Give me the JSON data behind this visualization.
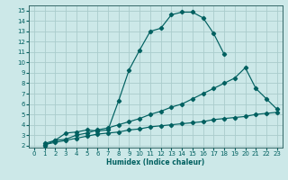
{
  "xlabel": "Humidex (Indice chaleur)",
  "bg_color": "#cce8e8",
  "grid_color": "#aacccc",
  "line_color": "#006060",
  "spine_color": "#336666",
  "xlim": [
    -0.5,
    23.5
  ],
  "ylim": [
    1.8,
    15.5
  ],
  "xticks": [
    0,
    1,
    2,
    3,
    4,
    5,
    6,
    7,
    8,
    9,
    10,
    11,
    12,
    13,
    14,
    15,
    16,
    17,
    18,
    19,
    20,
    21,
    22,
    23
  ],
  "yticks": [
    2,
    3,
    4,
    5,
    6,
    7,
    8,
    9,
    10,
    11,
    12,
    13,
    14,
    15
  ],
  "line1_x": [
    1,
    2,
    3,
    4,
    5,
    6,
    7,
    8,
    9,
    10,
    11,
    12,
    13,
    14,
    15,
    16,
    17,
    18
  ],
  "line1_y": [
    2.0,
    2.5,
    3.2,
    3.3,
    3.5,
    3.4,
    3.5,
    6.3,
    9.3,
    11.2,
    13.0,
    13.3,
    14.6,
    14.85,
    14.85,
    14.3,
    12.8,
    10.8
  ],
  "line2_x": [
    1,
    2,
    3,
    4,
    5,
    6,
    7,
    8,
    9,
    10,
    11,
    12,
    13,
    14,
    15,
    16,
    17,
    18,
    19,
    20,
    21,
    22,
    23
  ],
  "line2_y": [
    2.2,
    2.5,
    2.6,
    3.0,
    3.2,
    3.5,
    3.7,
    4.0,
    4.3,
    4.6,
    5.0,
    5.3,
    5.7,
    6.0,
    6.5,
    7.0,
    7.5,
    8.0,
    8.5,
    9.5,
    7.5,
    6.5,
    5.5
  ],
  "line3_x": [
    1,
    2,
    3,
    4,
    5,
    6,
    7,
    8,
    9,
    10,
    11,
    12,
    13,
    14,
    15,
    16,
    17,
    18,
    19,
    20,
    21,
    22,
    23
  ],
  "line3_y": [
    2.1,
    2.3,
    2.5,
    2.7,
    2.9,
    3.1,
    3.2,
    3.3,
    3.5,
    3.6,
    3.8,
    3.9,
    4.0,
    4.1,
    4.2,
    4.3,
    4.5,
    4.6,
    4.7,
    4.8,
    5.0,
    5.1,
    5.2
  ],
  "tick_fontsize": 5.0,
  "xlabel_fontsize": 5.5
}
